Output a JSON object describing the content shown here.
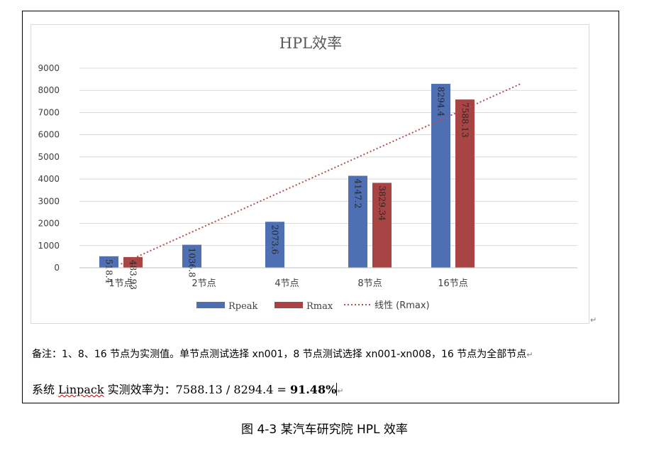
{
  "chart_data": {
    "type": "bar",
    "title": "HPL效率",
    "categories": [
      "1节点",
      "2节点",
      "4节点",
      "8节点",
      "16节点"
    ],
    "series": [
      {
        "name": "Rpeak",
        "color": "#4f6fb3",
        "values": [
          518.4,
          1036.8,
          2073.6,
          4147.2,
          8294.4
        ],
        "labels": [
          "518.4",
          "1036.8",
          "2073.6",
          "4147.2",
          "8294.4"
        ]
      },
      {
        "name": "Rmax",
        "color": "#a84444",
        "values": [
          483.93,
          null,
          null,
          3829.34,
          7588.13
        ],
        "labels": [
          "483.93",
          "",
          "",
          "3829.34",
          "7588.13"
        ]
      }
    ],
    "trendline": {
      "name": "线性 (Rmax)",
      "color": "#b05050",
      "style": "dotted",
      "y_start": 170,
      "y_end": 8300
    },
    "ylim": [
      0,
      9000
    ],
    "yticks": [
      "0",
      "1000",
      "2000",
      "3000",
      "4000",
      "5000",
      "6000",
      "7000",
      "8000",
      "9000"
    ],
    "grid": true,
    "legend": "bottom"
  },
  "note": "备注：1、8、16 节点为实测值。单节点测试选择 xn001，8 节点测试选择 xn001-xn008，16 节点为全部节点",
  "calc": {
    "prefix": "系统 ",
    "brand": "Linpack",
    "middle": " 实测效率为：7588.13 / 8294.4 = ",
    "result": "91.48%"
  },
  "caption": "图 4-3 某汽车研究院 HPL 效率",
  "para_mark": "↵"
}
